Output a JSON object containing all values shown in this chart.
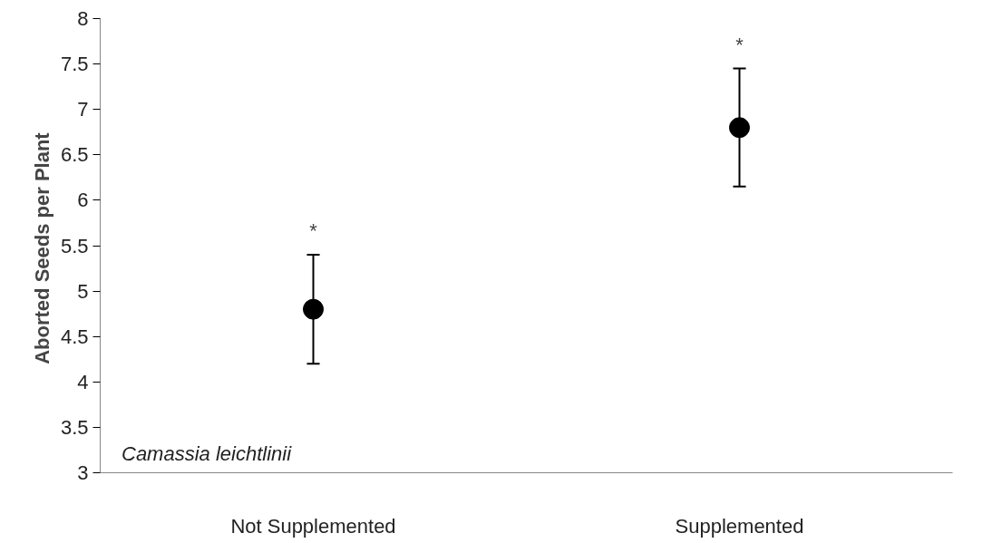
{
  "chart_data": {
    "type": "scatter",
    "ylabel": "Aborted  Seeds per Plant",
    "categories": [
      "Not Supplemented",
      "Supplemented"
    ],
    "values": [
      4.8,
      6.8
    ],
    "errors": [
      [
        4.2,
        5.4
      ],
      [
        6.15,
        7.45
      ]
    ],
    "color": "#000000",
    "marker": "circle",
    "grid": false,
    "ylim": [
      3,
      8
    ],
    "yticks": [
      3,
      3.5,
      4,
      4.5,
      5,
      5.5,
      6,
      6.5,
      7,
      7.5,
      8
    ],
    "annotations": [
      "Camassia leichtlinii",
      "*",
      "*"
    ]
  }
}
